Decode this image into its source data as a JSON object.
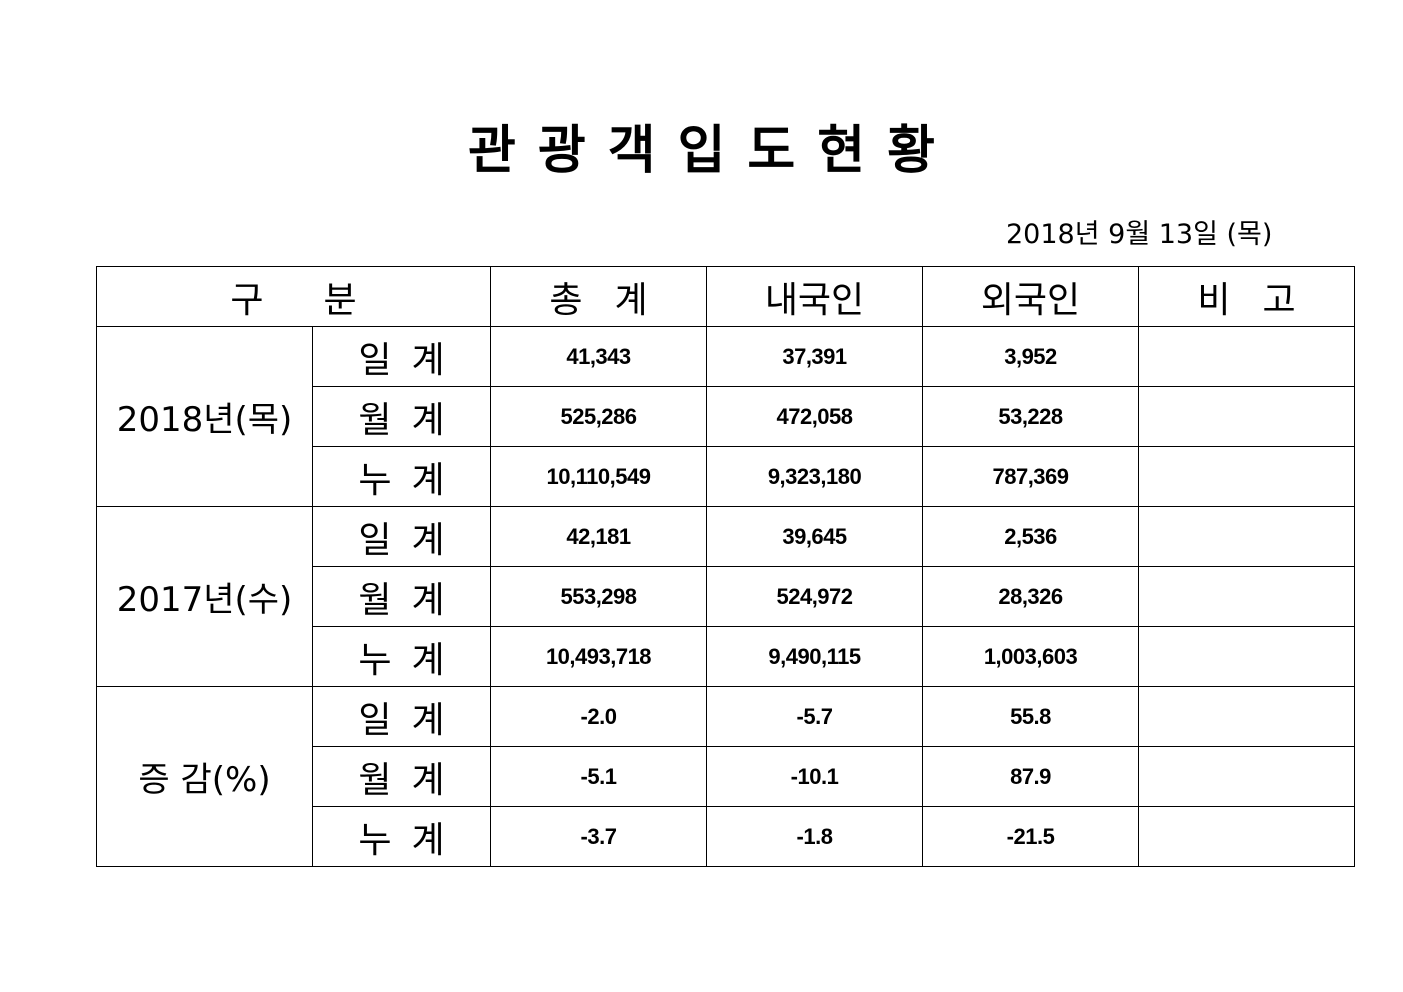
{
  "document": {
    "title_chars": [
      "관",
      "광",
      "객",
      "입",
      "도",
      "현",
      "황"
    ],
    "title": "관광객입도현황",
    "date": "2018년  9월  13일  (목)"
  },
  "table": {
    "headers": {
      "category": [
        "구",
        "분"
      ],
      "total": [
        "총",
        "계"
      ],
      "domestic": "내국인",
      "foreign": "외국인",
      "remarks": [
        "비",
        "고"
      ]
    },
    "groups": [
      {
        "label": "2018년(목)",
        "rows": [
          {
            "sub": [
              "일",
              "계"
            ],
            "total": "41,343",
            "domestic": "37,391",
            "foreign": "3,952",
            "remarks": ""
          },
          {
            "sub": [
              "월",
              "계"
            ],
            "total": "525,286",
            "domestic": "472,058",
            "foreign": "53,228",
            "remarks": ""
          },
          {
            "sub": [
              "누",
              "계"
            ],
            "total": "10,110,549",
            "domestic": "9,323,180",
            "foreign": "787,369",
            "remarks": ""
          }
        ]
      },
      {
        "label": "2017년(수)",
        "rows": [
          {
            "sub": [
              "일",
              "계"
            ],
            "total": "42,181",
            "domestic": "39,645",
            "foreign": "2,536",
            "remarks": ""
          },
          {
            "sub": [
              "월",
              "계"
            ],
            "total": "553,298",
            "domestic": "524,972",
            "foreign": "28,326",
            "remarks": ""
          },
          {
            "sub": [
              "누",
              "계"
            ],
            "total": "10,493,718",
            "domestic": "9,490,115",
            "foreign": "1,003,603",
            "remarks": ""
          }
        ]
      },
      {
        "label": "증 감(%)",
        "rows": [
          {
            "sub": [
              "일",
              "계"
            ],
            "total": "-2.0",
            "domestic": "-5.7",
            "foreign": "55.8",
            "remarks": ""
          },
          {
            "sub": [
              "월",
              "계"
            ],
            "total": "-5.1",
            "domestic": "-10.1",
            "foreign": "87.9",
            "remarks": ""
          },
          {
            "sub": [
              "누",
              "계"
            ],
            "total": "-3.7",
            "domestic": "-1.8",
            "foreign": "-21.5",
            "remarks": ""
          }
        ]
      }
    ]
  }
}
